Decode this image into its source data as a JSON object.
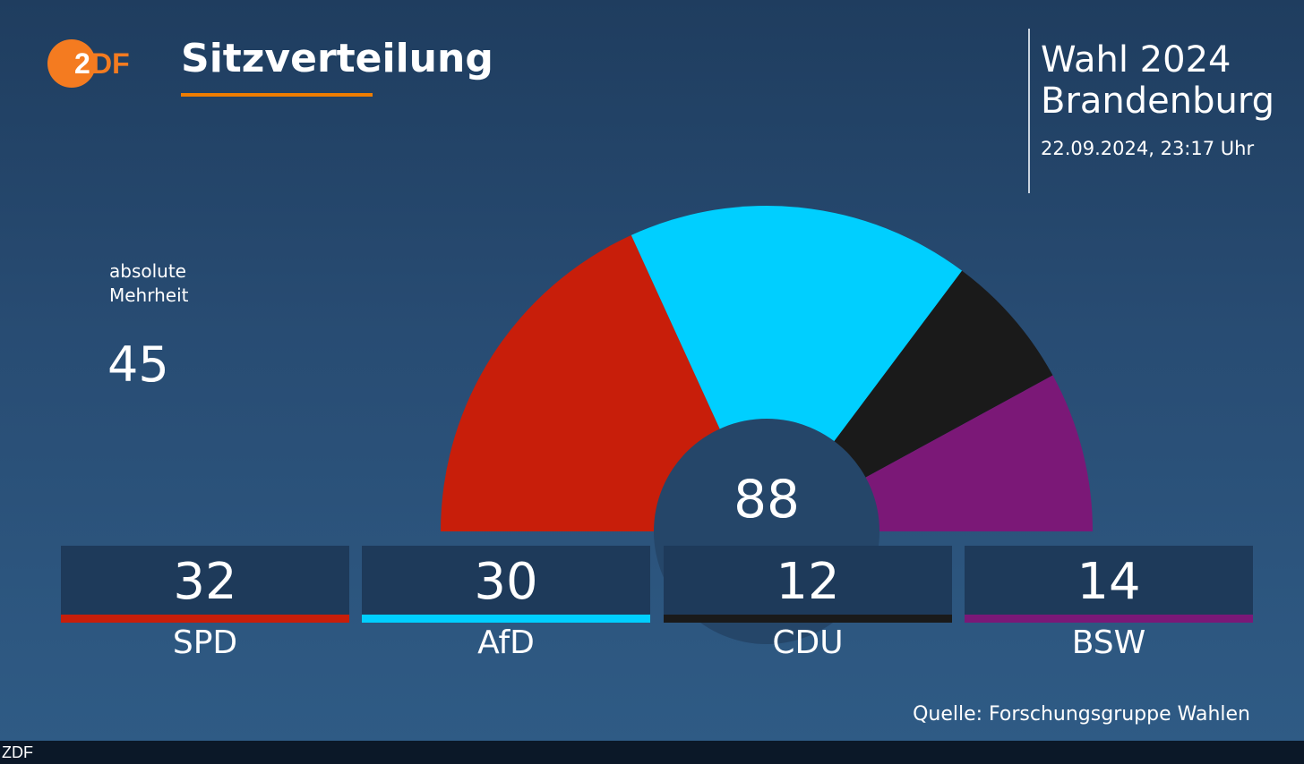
{
  "header": {
    "title": "Sitzverteilung",
    "logo_text": "ZDF",
    "election_line1": "Wahl 2024",
    "election_line2": "Brandenburg",
    "timestamp": "22.09.2024, 23:17 Uhr"
  },
  "majority": {
    "label_line1": "absolute",
    "label_line2": "Mehrheit",
    "value": "45"
  },
  "source": "Quelle: Forschungsgruppe Wahlen",
  "bottom_strip": "ZDF",
  "colors": {
    "accent": "#ef7d00",
    "SPD": "#c81e0a",
    "AfD": "#00cfff",
    "CDU": "#1a1a1a",
    "BSW": "#7b1877"
  },
  "chart_data": {
    "type": "pie",
    "variant": "semicircle-parliament",
    "title": "Sitzverteilung",
    "total_seats": 88,
    "total_label": "88",
    "majority": 45,
    "categories": [
      "SPD",
      "AfD",
      "CDU",
      "BSW"
    ],
    "values": [
      32,
      30,
      12,
      14
    ],
    "labels": [
      "32",
      "30",
      "12",
      "14"
    ],
    "colors": [
      "#c81e0a",
      "#00cfff",
      "#1a1a1a",
      "#7b1877"
    ]
  }
}
